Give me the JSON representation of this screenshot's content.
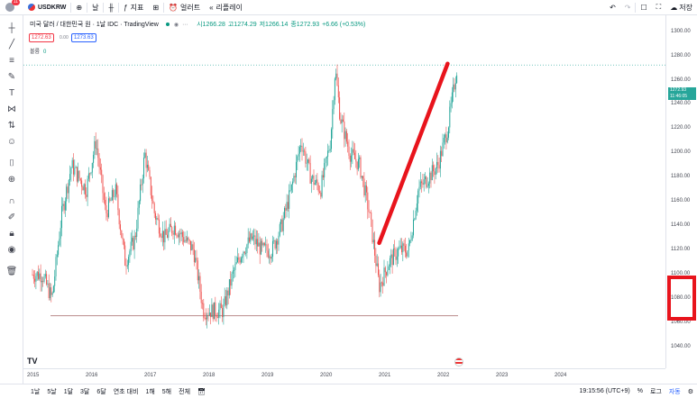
{
  "topbar": {
    "notification_count": "11",
    "symbol": "USDKRW",
    "interval": "날",
    "indicators": "지표",
    "alert": "얼러트",
    "replay": "리플레이",
    "save": "저장"
  },
  "legend": {
    "title": "미국 달러 / 대한민국 원 · 1날  IDC · TradingView",
    "open": "시1266.28",
    "high": "고1274.29",
    "low": "저1266.14",
    "close": "종1272.93",
    "change": "+6.66 (+0.53%)",
    "sell_price": "1272.63",
    "spread": "0.00",
    "buy_price": "1273.63",
    "volume_label": "볼륨",
    "volume_value": "0"
  },
  "price_axis": {
    "labels": [
      "1300.00",
      "1280.00",
      "1260.00",
      "1240.00",
      "1220.00",
      "1200.00",
      "1180.00",
      "1160.00",
      "1140.00",
      "1120.00",
      "1100.00",
      "1080.00",
      "1060.00",
      "1040.00"
    ],
    "current_price": "1272.93",
    "countdown": "11:46:05"
  },
  "time_axis": {
    "labels": [
      "2015",
      "2016",
      "2017",
      "2018",
      "2019",
      "2020",
      "2021",
      "2022",
      "2023",
      "2024"
    ]
  },
  "bottombar": {
    "ranges": [
      "1날",
      "5날",
      "1달",
      "3달",
      "6달",
      "연초 대비",
      "1해",
      "5해",
      "전체"
    ],
    "clock": "19:15:56 (UTC+9)",
    "percent": "%",
    "log": "로그",
    "auto": "자동"
  },
  "chart_data": {
    "type": "candlestick",
    "ylim": [
      1030,
      1305
    ],
    "x_range": [
      "2015-01",
      "2024-12"
    ],
    "series": [
      {
        "x": [
          "2015-01",
          "2015-03",
          "2015-05",
          "2015-07",
          "2015-09",
          "2015-12",
          "2016-02",
          "2016-04",
          "2016-06",
          "2016-08",
          "2016-10",
          "2016-12",
          "2017-02",
          "2017-04",
          "2017-06",
          "2017-08",
          "2017-10",
          "2017-12",
          "2018-02",
          "2018-04",
          "2018-06",
          "2018-08",
          "2018-10",
          "2018-12",
          "2019-02",
          "2019-04",
          "2019-06",
          "2019-08",
          "2019-10",
          "2019-12",
          "2020-02",
          "2020-03",
          "2020-04",
          "2020-06",
          "2020-08",
          "2020-10",
          "2020-12",
          "2021-02",
          "2021-04",
          "2021-06",
          "2021-08",
          "2021-10",
          "2021-12",
          "2022-02",
          "2022-04"
        ],
        "values": [
          1100,
          1100,
          1080,
          1150,
          1190,
          1170,
          1210,
          1150,
          1170,
          1110,
          1130,
          1200,
          1150,
          1130,
          1140,
          1130,
          1120,
          1070,
          1070,
          1070,
          1100,
          1120,
          1130,
          1120,
          1120,
          1140,
          1170,
          1210,
          1180,
          1170,
          1210,
          1270,
          1230,
          1200,
          1190,
          1150,
          1090,
          1110,
          1120,
          1120,
          1170,
          1180,
          1190,
          1220,
          1273
        ]
      }
    ],
    "horizontal_line": 1066,
    "annotation_line": {
      "from": [
        "2020-12",
        1126
      ],
      "to": [
        "2022-02",
        1274
      ],
      "color": "#e8141c"
    }
  },
  "colors": {
    "up": "#26a69a",
    "down": "#ef5350",
    "annotation": "#e8141c",
    "accent": "#2962ff"
  }
}
